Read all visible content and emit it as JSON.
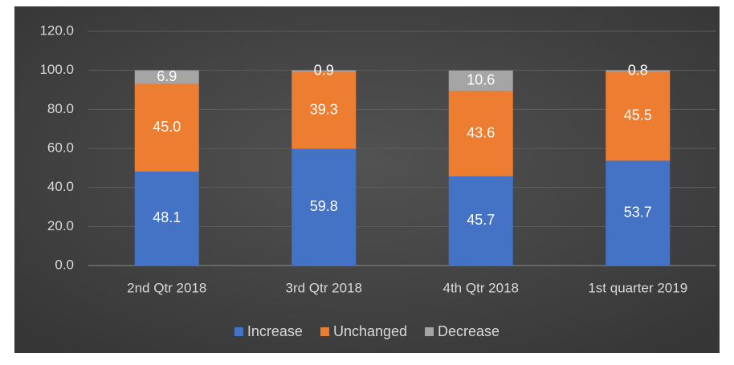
{
  "chart_data": {
    "type": "stacked_bar",
    "categories": [
      "2nd Qtr 2018",
      "3rd Qtr 2018",
      "4th Qtr 2018",
      "1st quarter 2019"
    ],
    "series": [
      {
        "name": "Increase",
        "color": "#4472c4",
        "values": [
          48.1,
          59.8,
          45.7,
          53.7
        ],
        "value_labels": [
          "48.1",
          "59.8",
          "45.7",
          "53.7"
        ]
      },
      {
        "name": "Unchanged",
        "color": "#ed7d31",
        "values": [
          45,
          39.3,
          43.6,
          45.5
        ],
        "value_labels": [
          "45.0",
          "39.3",
          "43.6",
          "45.5"
        ]
      },
      {
        "name": "Decrease",
        "color": "#a5a5a5",
        "values": [
          6.9,
          0.9,
          10.6,
          0.8
        ],
        "value_labels": [
          "6.9",
          "0.9",
          "10.6",
          "0.8"
        ]
      }
    ],
    "ylim": [
      0,
      120
    ],
    "yticks": [
      {
        "value": 0,
        "label": "0.0"
      },
      {
        "value": 20,
        "label": "20.0"
      },
      {
        "value": 40,
        "label": "40.0"
      },
      {
        "value": 60,
        "label": "60.0"
      },
      {
        "value": 80,
        "label": "80.0"
      },
      {
        "value": 100,
        "label": "100.0"
      },
      {
        "value": 120,
        "label": "120.0"
      }
    ],
    "grid": true,
    "legend": "bottom"
  }
}
